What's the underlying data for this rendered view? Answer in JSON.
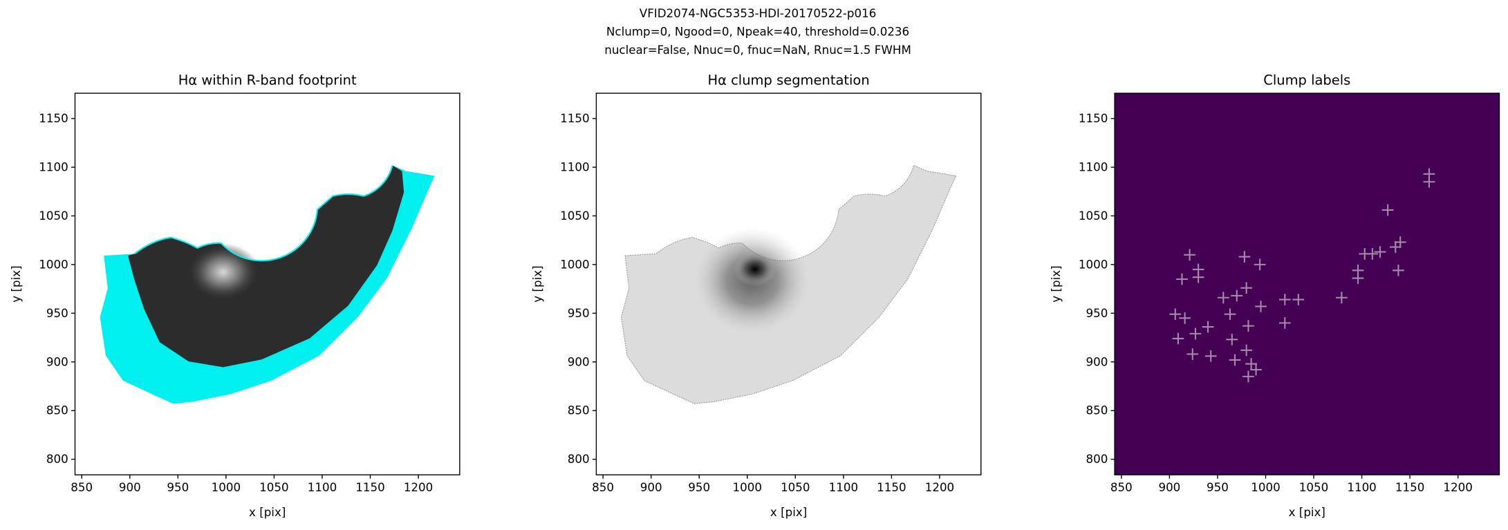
{
  "figure_title": [
    "VFID2074-NGC5353-HDI-20170522-p016",
    "Nclump=0, Ngood=0, Npeak=40, threshold=0.0236",
    "nuclear=False, Nnuc=0, fnuc=NaN, Rnuc=1.5 FWHM"
  ],
  "chart_data": [
    {
      "type": "image",
      "title": "Hα within R-band footprint",
      "xlabel": "x [pix]",
      "ylabel": "y [pix]",
      "xlim": [
        843,
        1243
      ],
      "ylim": [
        784,
        1176
      ],
      "xticks": [
        850,
        900,
        950,
        1000,
        1050,
        1100,
        1150,
        1200
      ],
      "yticks": [
        800,
        850,
        900,
        950,
        1000,
        1050,
        1100,
        1150
      ]
    },
    {
      "type": "image",
      "title": "Hα clump segmentation",
      "xlabel": "x [pix]",
      "ylabel": "y [pix]",
      "xlim": [
        843,
        1243
      ],
      "ylim": [
        784,
        1176
      ],
      "xticks": [
        850,
        900,
        950,
        1000,
        1050,
        1100,
        1150,
        1200
      ],
      "yticks": [
        800,
        850,
        900,
        950,
        1000,
        1050,
        1100,
        1150
      ]
    },
    {
      "type": "scatter",
      "title": "Clump labels",
      "xlabel": "x [pix]",
      "ylabel": "y [pix]",
      "xlim": [
        843,
        1243
      ],
      "ylim": [
        784,
        1176
      ],
      "xticks": [
        850,
        900,
        950,
        1000,
        1050,
        1100,
        1150,
        1200
      ],
      "yticks": [
        800,
        850,
        900,
        950,
        1000,
        1050,
        1100,
        1150
      ],
      "background": "#440154",
      "color": "#a48aa8",
      "x": [
        1170,
        1170,
        1127,
        1140,
        1135,
        1119,
        1111,
        1103,
        1096,
        1096,
        1138,
        1079,
        1034,
        1020,
        1020,
        995,
        994,
        978,
        980,
        970,
        956,
        963,
        982,
        965,
        980,
        968,
        985,
        990,
        982,
        943,
        924,
        927,
        909,
        940,
        906,
        916,
        913,
        930,
        930,
        921
      ],
      "y": [
        1093,
        1085,
        1056,
        1023,
        1018,
        1013,
        1011,
        1011,
        994,
        986,
        994,
        966,
        964,
        964,
        940,
        957,
        1000,
        1008,
        976,
        968,
        966,
        949,
        937,
        923,
        912,
        902,
        898,
        892,
        885,
        906,
        908,
        929,
        924,
        936,
        949,
        945,
        985,
        995,
        987,
        1010
      ]
    }
  ]
}
